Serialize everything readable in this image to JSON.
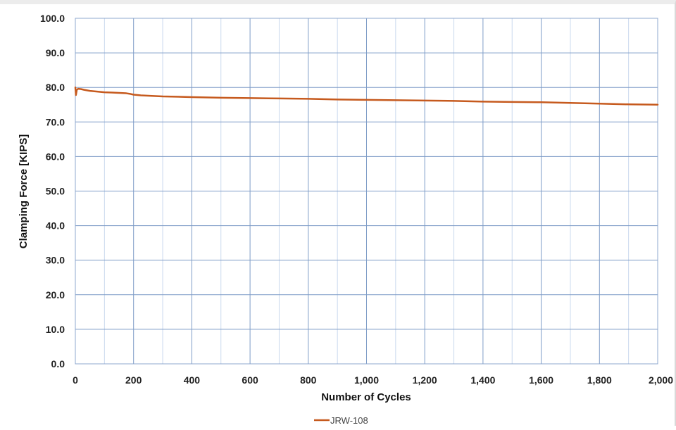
{
  "chart_data": {
    "type": "line",
    "xlabel": "Number of Cycles",
    "ylabel": "Clamping Force [KIPS]",
    "xlim": [
      0,
      2000
    ],
    "ylim": [
      0,
      100
    ],
    "x_ticks": [
      {
        "value": 0,
        "label": "0"
      },
      {
        "value": 200,
        "label": "200"
      },
      {
        "value": 400,
        "label": "400"
      },
      {
        "value": 600,
        "label": "600"
      },
      {
        "value": 800,
        "label": "800"
      },
      {
        "value": 1000,
        "label": "1,000"
      },
      {
        "value": 1200,
        "label": "1,200"
      },
      {
        "value": 1400,
        "label": "1,400"
      },
      {
        "value": 1600,
        "label": "1,600"
      },
      {
        "value": 1800,
        "label": "1,800"
      },
      {
        "value": 2000,
        "label": "2,000"
      }
    ],
    "y_ticks": [
      {
        "value": 0,
        "label": "0.0"
      },
      {
        "value": 10,
        "label": "10.0"
      },
      {
        "value": 20,
        "label": "20.0"
      },
      {
        "value": 30,
        "label": "30.0"
      },
      {
        "value": 40,
        "label": "40.0"
      },
      {
        "value": 50,
        "label": "50.0"
      },
      {
        "value": 60,
        "label": "60.0"
      },
      {
        "value": 70,
        "label": "70.0"
      },
      {
        "value": 80,
        "label": "80.0"
      },
      {
        "value": 90,
        "label": "90.0"
      },
      {
        "value": 100,
        "label": "100.0"
      }
    ],
    "x_minor_step": 100,
    "grid": true,
    "legend_position": "bottom-center",
    "series": [
      {
        "name": "JRW-108",
        "color": "#c65a1e",
        "x": [
          0,
          2,
          5,
          10,
          20,
          30,
          50,
          75,
          100,
          125,
          150,
          175,
          190,
          200,
          225,
          250,
          300,
          400,
          500,
          600,
          700,
          800,
          900,
          1000,
          1100,
          1200,
          1300,
          1400,
          1500,
          1600,
          1700,
          1800,
          1900,
          2000
        ],
        "y": [
          80.0,
          77.8,
          79.3,
          79.6,
          79.5,
          79.3,
          79.0,
          78.8,
          78.6,
          78.5,
          78.4,
          78.3,
          78.1,
          77.9,
          77.7,
          77.6,
          77.4,
          77.2,
          77.0,
          76.9,
          76.8,
          76.7,
          76.5,
          76.4,
          76.3,
          76.2,
          76.1,
          75.9,
          75.8,
          75.7,
          75.5,
          75.3,
          75.1,
          75.0
        ]
      }
    ]
  }
}
